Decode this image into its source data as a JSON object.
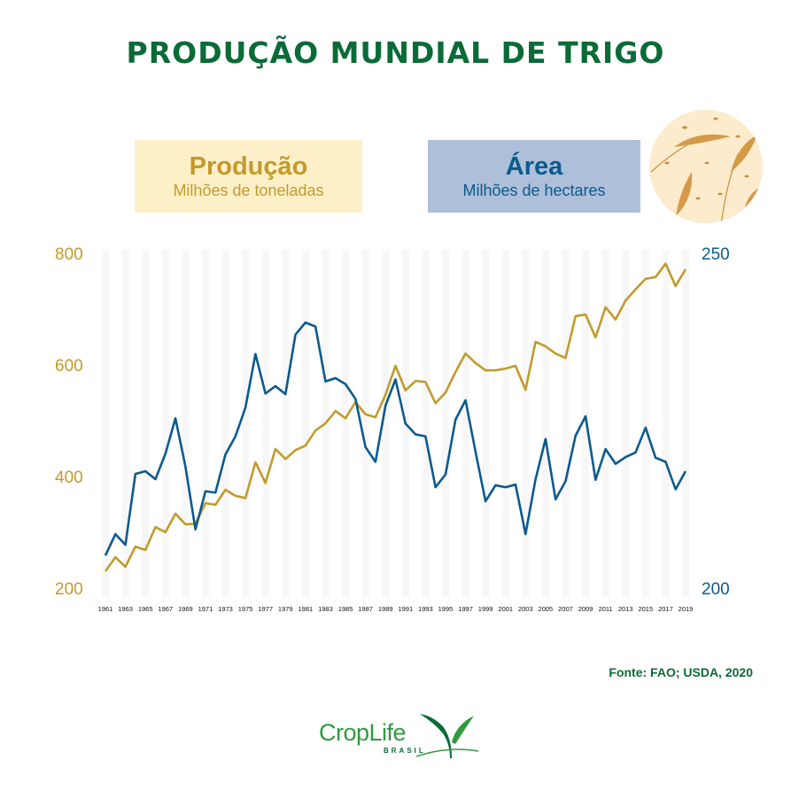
{
  "title": "PRODUÇÃO MUNDIAL DE TRIGO",
  "legend": {
    "production": {
      "title": "Produção",
      "subtitle": "Milhões de toneladas",
      "color": "#c29a2c",
      "bg": "#fdf0c9"
    },
    "area": {
      "title": "Área",
      "subtitle": "Milhões de hectares",
      "color": "#0b5a8e",
      "bg": "#adbfd9"
    }
  },
  "axes": {
    "left_ticks": [
      "800",
      "600",
      "400",
      "200"
    ],
    "right_ticks": [
      "250",
      "200"
    ]
  },
  "x_tick_labels": [
    "1961",
    "1963",
    "1965",
    "1967",
    "1969",
    "1971",
    "1973",
    "1975",
    "1977",
    "1979",
    "1981",
    "1983",
    "1985",
    "1987",
    "1989",
    "1991",
    "1993",
    "1995",
    "1997",
    "1999",
    "2001",
    "2003",
    "2005",
    "2007",
    "2009",
    "2011",
    "2013",
    "2015",
    "2017",
    "2019"
  ],
  "source": "Fonte: FAO; USDA, 2020",
  "logo": {
    "name": "CropLife",
    "sub": "BRASIL"
  },
  "chart_data": {
    "type": "line",
    "title": "PRODUÇÃO MUNDIAL DE TRIGO",
    "xlabel": "",
    "x": [
      1961,
      1962,
      1963,
      1964,
      1965,
      1966,
      1967,
      1968,
      1969,
      1970,
      1971,
      1972,
      1973,
      1974,
      1975,
      1976,
      1977,
      1978,
      1979,
      1980,
      1981,
      1982,
      1983,
      1984,
      1985,
      1986,
      1987,
      1988,
      1989,
      1990,
      1991,
      1992,
      1993,
      1994,
      1995,
      1996,
      1997,
      1998,
      1999,
      2000,
      2001,
      2002,
      2003,
      2004,
      2005,
      2006,
      2007,
      2008,
      2009,
      2010,
      2011,
      2012,
      2013,
      2014,
      2015,
      2016,
      2017,
      2018,
      2019
    ],
    "series": [
      {
        "name": "Produção (Milhões de toneladas)",
        "axis": "left",
        "color": "#c29a2c",
        "ylim": [
          200,
          800
        ],
        "values": [
          232,
          257,
          240,
          276,
          270,
          311,
          302,
          335,
          316,
          317,
          354,
          351,
          378,
          367,
          363,
          427,
          390,
          451,
          433,
          449,
          457,
          484,
          497,
          519,
          506,
          535,
          513,
          508,
          548,
          600,
          556,
          573,
          571,
          533,
          552,
          589,
          622,
          605,
          592,
          592,
          595,
          600,
          557,
          643,
          635,
          622,
          614,
          689,
          692,
          651,
          705,
          683,
          717,
          737,
          756,
          759,
          783,
          743,
          773
        ]
      },
      {
        "name": "Área (Milhões de hectares)",
        "axis": "right",
        "color": "#0b5a8e",
        "ylim": [
          200,
          250
        ],
        "values": [
          205.0,
          208.2,
          206.6,
          217.2,
          217.6,
          216.4,
          220.2,
          225.5,
          218.3,
          208.9,
          214.6,
          214.4,
          220.1,
          222.8,
          227.1,
          235.1,
          229.2,
          230.3,
          229.1,
          238.0,
          239.8,
          239.2,
          231.0,
          231.5,
          230.6,
          228.4,
          221.2,
          219.0,
          227.4,
          231.3,
          224.7,
          223.1,
          222.8,
          215.2,
          217.1,
          225.3,
          228.2,
          220.5,
          213.1,
          215.5,
          215.2,
          215.6,
          208.2,
          216.4,
          222.4,
          213.4,
          216.1,
          222.9,
          225.8,
          216.3,
          220.9,
          218.7,
          219.7,
          220.4,
          224.1,
          219.6,
          219.0,
          214.9,
          217.6
        ]
      }
    ],
    "left_axis": {
      "label": "Produção - Milhões de toneladas",
      "ticks": [
        200,
        400,
        600,
        800
      ]
    },
    "right_axis": {
      "label": "Área - Milhões de hectares",
      "ticks": [
        200,
        250
      ]
    },
    "grid": "alternating vertical bands every 2 years",
    "legend_position": "top"
  }
}
